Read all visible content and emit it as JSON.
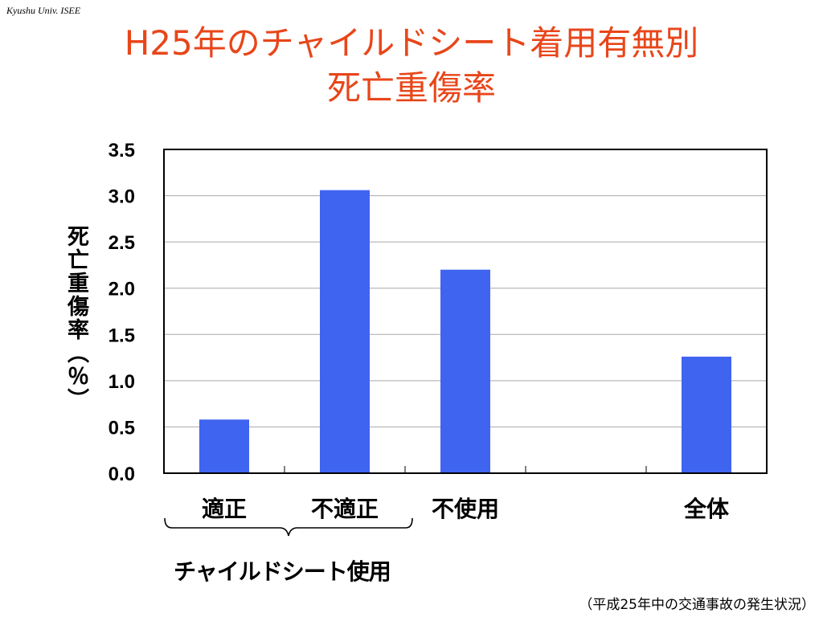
{
  "header": {
    "source": "Kyushu Univ. ISEE",
    "title_line1": "H25年のチャイルドシート着用有無別",
    "title_line2": "死亡重傷率"
  },
  "colors": {
    "title": "#e8461a",
    "bar": "#3f64f0"
  },
  "chart_data": {
    "type": "bar",
    "title": "H25年のチャイルドシート着用有無別 死亡重傷率",
    "ylabel": "死亡重傷率（％）",
    "xlabel": "",
    "categories": [
      "適正",
      "不適正",
      "不使用",
      "",
      "全体"
    ],
    "values": [
      0.58,
      3.06,
      2.2,
      null,
      1.26
    ],
    "ylim": [
      0,
      3.5
    ],
    "yticks": [
      "0.0",
      "0.5",
      "1.0",
      "1.5",
      "2.0",
      "2.5",
      "3.0",
      "3.5"
    ],
    "grid": true,
    "legend": "none",
    "group_label": "チャイルドシート使用",
    "note": "（平成25年中の交通事故の発生状況）"
  }
}
